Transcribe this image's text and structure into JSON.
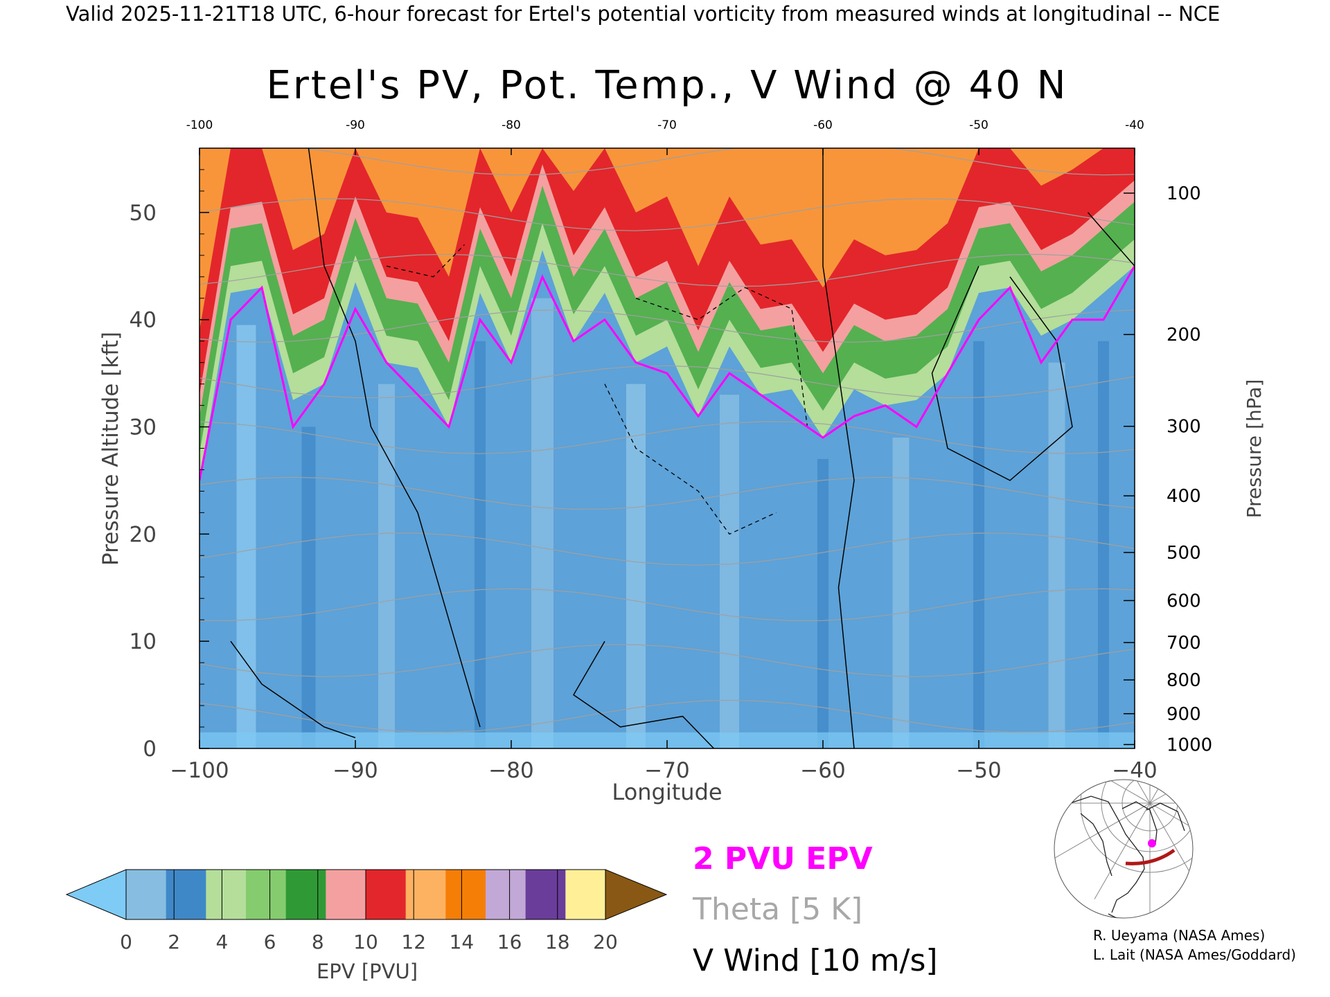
{
  "header": {
    "valid_line": "Valid 2025-11-21T18 UTC, 6-hour forecast for Ertel's potential vorticity from measured winds at longitudinal -- NCE"
  },
  "chart_data": {
    "type": "heatmap",
    "title": "Ertel's PV, Pot. Temp., V Wind @ 40 N",
    "xlabel": "Longitude",
    "ylabel_left": "Pressure Altitude [kft]",
    "ylabel_right": "Pressure [hPa]",
    "xlim": [
      -100,
      -40
    ],
    "ylim_kft": [
      0,
      56
    ],
    "x_ticks": [
      -100,
      -90,
      -80,
      -70,
      -60,
      -50,
      -40
    ],
    "x_tick_labels_bottom": [
      "−100",
      "−90",
      "−80",
      "−70",
      "−60",
      "−50",
      "−40"
    ],
    "x_tick_labels_top": [
      "-100",
      "-90",
      "-80",
      "-70",
      "-60",
      "-50",
      "-40"
    ],
    "y_ticks_kft": [
      0,
      10,
      20,
      30,
      40,
      50
    ],
    "y_tick_labels_kft": [
      "0",
      "10",
      "20",
      "30",
      "40",
      "50"
    ],
    "pressure_ticks": [
      {
        "hpa": 100,
        "label": "100"
      },
      {
        "hpa": 200,
        "label": "200"
      },
      {
        "hpa": 300,
        "label": "300"
      },
      {
        "hpa": 400,
        "label": "400"
      },
      {
        "hpa": 500,
        "label": "500"
      },
      {
        "hpa": 600,
        "label": "600"
      },
      {
        "hpa": 700,
        "label": "700"
      },
      {
        "hpa": 800,
        "label": "800"
      },
      {
        "hpa": 900,
        "label": "900"
      },
      {
        "hpa": 1000,
        "label": "1000"
      }
    ],
    "tropopause_kft_by_lon": [
      {
        "lon": -100,
        "kft": 25
      },
      {
        "lon": -98,
        "kft": 40
      },
      {
        "lon": -96,
        "kft": 43
      },
      {
        "lon": -94,
        "kft": 30
      },
      {
        "lon": -92,
        "kft": 34
      },
      {
        "lon": -90,
        "kft": 41
      },
      {
        "lon": -88,
        "kft": 36
      },
      {
        "lon": -86,
        "kft": 33
      },
      {
        "lon": -84,
        "kft": 30
      },
      {
        "lon": -82,
        "kft": 40
      },
      {
        "lon": -80,
        "kft": 36
      },
      {
        "lon": -78,
        "kft": 44
      },
      {
        "lon": -76,
        "kft": 38
      },
      {
        "lon": -74,
        "kft": 40
      },
      {
        "lon": -72,
        "kft": 36
      },
      {
        "lon": -70,
        "kft": 35
      },
      {
        "lon": -68,
        "kft": 31
      },
      {
        "lon": -66,
        "kft": 35
      },
      {
        "lon": -64,
        "kft": 33
      },
      {
        "lon": -62,
        "kft": 31
      },
      {
        "lon": -60,
        "kft": 29
      },
      {
        "lon": -58,
        "kft": 31
      },
      {
        "lon": -56,
        "kft": 32
      },
      {
        "lon": -54,
        "kft": 30
      },
      {
        "lon": -52,
        "kft": 35
      },
      {
        "lon": -50,
        "kft": 40
      },
      {
        "lon": -48,
        "kft": 43
      },
      {
        "lon": -46,
        "kft": 36
      },
      {
        "lon": -44,
        "kft": 40
      },
      {
        "lon": -42,
        "kft": 40
      },
      {
        "lon": -40,
        "kft": 45
      }
    ],
    "theta_levels_K": [
      300,
      310,
      320,
      330,
      340,
      350,
      360,
      370,
      380,
      390,
      400
    ],
    "colorbar": {
      "label": "EPV [PVU]",
      "ticks": [
        "0",
        "2",
        "4",
        "6",
        "8",
        "10",
        "12",
        "14",
        "16",
        "18",
        "20"
      ],
      "colors": [
        "#7ecbf5",
        "#87bde0",
        "#3f88c8",
        "#b4de9a",
        "#85cc6e",
        "#2f9a35",
        "#f4a0a0",
        "#e3262b",
        "#fdb262",
        "#f57e06",
        "#c2a8d6",
        "#6a3d9a",
        "#fff098",
        "#895814"
      ]
    },
    "legend": {
      "pv_2pvu": "2 PVU EPV",
      "theta": "Theta [5 K]",
      "vwind": "V Wind [10 m/s]"
    }
  },
  "colors": {
    "pv_line": "#ff00ff",
    "theta_line": "#a0a0a0",
    "wind_line": "#000000",
    "map_track": "#b01818"
  },
  "credits": {
    "line1": "R. Ueyama (NASA Ames)",
    "line2": "L. Lait (NASA Ames/Goddard)"
  }
}
